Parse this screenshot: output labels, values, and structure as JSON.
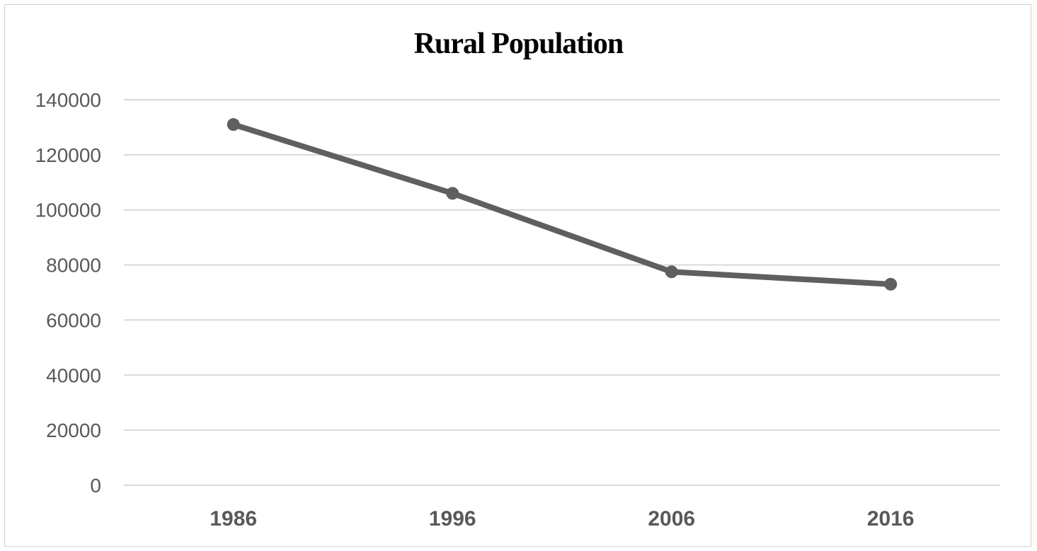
{
  "chart_data": {
    "type": "line",
    "title": "Rural Population",
    "xlabel": "",
    "ylabel": "",
    "categories": [
      "1986",
      "1996",
      "2006",
      "2016"
    ],
    "series": [
      {
        "values": [
          131000,
          106000,
          77500,
          73000
        ]
      }
    ],
    "ylim": [
      0,
      140000
    ],
    "yticks": [
      "0",
      "20000",
      "40000",
      "60000",
      "80000",
      "100000",
      "120000",
      "140000"
    ],
    "grid": true,
    "legend": "none",
    "colors": {
      "line": "#5f5f5f",
      "grid": "#d9d9d9",
      "tick_text": "#595959"
    }
  }
}
